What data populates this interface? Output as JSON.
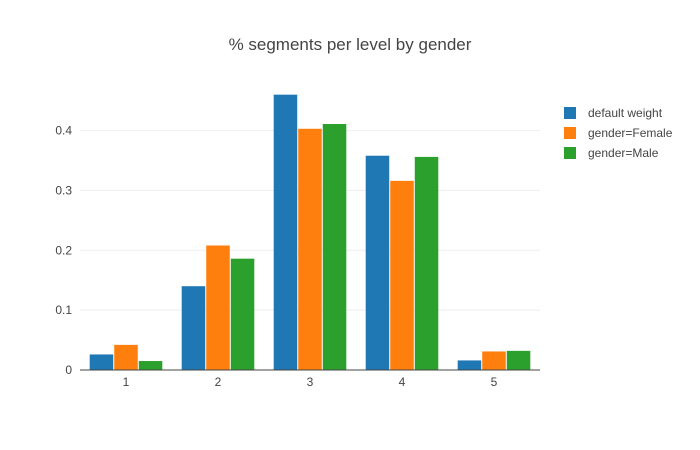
{
  "chart_data": {
    "type": "bar",
    "title": "% segments per level by gender",
    "xlabel": "",
    "ylabel": "",
    "categories": [
      "1",
      "2",
      "3",
      "4",
      "5"
    ],
    "series": [
      {
        "name": "default weight",
        "color": "#1f77b4",
        "values": [
          0.026,
          0.14,
          0.46,
          0.358,
          0.016
        ]
      },
      {
        "name": "gender=Female",
        "color": "#ff7f0e",
        "values": [
          0.042,
          0.208,
          0.403,
          0.316,
          0.031
        ]
      },
      {
        "name": "gender=Male",
        "color": "#2ca02c",
        "values": [
          0.015,
          0.186,
          0.411,
          0.356,
          0.032
        ]
      }
    ],
    "ylim": [
      0,
      0.4845
    ],
    "yticks": [
      {
        "value": 0,
        "label": "0"
      },
      {
        "value": 0.1,
        "label": "0.1"
      },
      {
        "value": 0.2,
        "label": "0.2"
      },
      {
        "value": 0.3,
        "label": "0.3"
      },
      {
        "value": 0.4,
        "label": "0.4"
      }
    ],
    "grid": true,
    "legend_position": "top-right"
  }
}
